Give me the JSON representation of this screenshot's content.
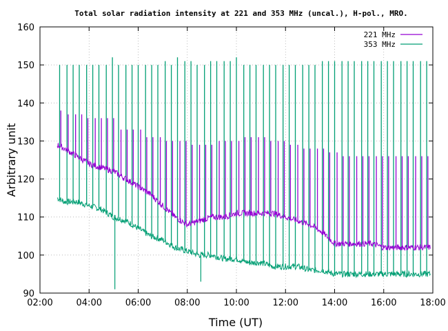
{
  "chart_data": {
    "type": "line",
    "title": "Total solar radiation intensity at 221 and 353 MHz (uncal.), H-pol., MRO.",
    "xlabel": "Time (UT)",
    "ylabel": "Arbitrary unit",
    "xlim_hours": [
      2,
      18
    ],
    "ylim": [
      90,
      160
    ],
    "x_ticks": [
      {
        "hour": 2,
        "label": "02:00"
      },
      {
        "hour": 4,
        "label": "04:00"
      },
      {
        "hour": 6,
        "label": "06:00"
      },
      {
        "hour": 8,
        "label": "08:00"
      },
      {
        "hour": 10,
        "label": "10:00"
      },
      {
        "hour": 12,
        "label": "12:00"
      },
      {
        "hour": 14,
        "label": "14:00"
      },
      {
        "hour": 16,
        "label": "16:00"
      },
      {
        "hour": 18,
        "label": "18:00"
      }
    ],
    "y_ticks": [
      90,
      100,
      110,
      120,
      130,
      140,
      150,
      160
    ],
    "grid": true,
    "legend": "top-right",
    "series": [
      {
        "name": "221 MHz",
        "color": "#9400d3",
        "x": [
          2.7,
          3.0,
          3.5,
          4.0,
          4.5,
          5.0,
          5.5,
          6.0,
          6.5,
          7.0,
          7.5,
          8.0,
          8.5,
          9.0,
          9.5,
          10.0,
          10.5,
          11.0,
          11.5,
          12.0,
          12.5,
          13.0,
          13.5,
          14.0,
          14.5,
          15.0,
          15.5,
          16.0,
          16.5,
          17.0,
          17.5,
          17.9
        ],
        "values": [
          129,
          128,
          126,
          124,
          123,
          122,
          120,
          118,
          116,
          113,
          110,
          108,
          109,
          110,
          110,
          111,
          111,
          111,
          111,
          110,
          109,
          108,
          106,
          103,
          103,
          103,
          103,
          102,
          102,
          102,
          102,
          102
        ],
        "spike_hours": [
          2.85,
          3.15,
          3.45,
          3.7,
          3.95,
          4.25,
          4.5,
          4.75,
          5.0,
          5.3,
          5.55,
          5.8,
          6.1,
          6.35,
          6.6,
          6.9,
          7.15,
          7.4,
          7.7,
          7.95,
          8.2,
          8.5,
          8.75,
          9.0,
          9.3,
          9.55,
          9.8,
          10.1,
          10.35,
          10.6,
          10.9,
          11.15,
          11.4,
          11.7,
          11.95,
          12.2,
          12.5,
          12.75,
          13.0,
          13.3,
          13.55,
          13.8,
          14.1,
          14.35,
          14.6,
          14.9,
          15.15,
          15.4,
          15.7,
          15.95,
          16.2,
          16.5,
          16.75,
          17.0,
          17.3,
          17.55,
          17.8
        ],
        "spike_peaks": [
          138,
          137,
          137,
          137,
          136,
          136,
          136,
          136,
          136,
          133,
          133,
          133,
          133,
          131,
          131,
          131,
          130,
          130,
          130,
          130,
          129,
          129,
          129,
          129,
          130,
          130,
          130,
          130,
          131,
          131,
          131,
          131,
          130,
          130,
          130,
          129,
          129,
          128,
          128,
          128,
          128,
          127,
          127,
          126,
          126,
          126,
          126,
          126,
          126,
          126,
          126,
          126,
          126,
          126,
          126,
          126,
          126
        ]
      },
      {
        "name": "353 MHz",
        "color": "#009e73",
        "x": [
          2.7,
          3.0,
          3.5,
          4.0,
          4.5,
          5.0,
          5.5,
          6.0,
          6.5,
          7.0,
          7.5,
          8.0,
          8.5,
          9.0,
          9.5,
          10.0,
          10.5,
          11.0,
          11.5,
          12.0,
          12.5,
          13.0,
          13.5,
          14.0,
          14.5,
          15.0,
          15.5,
          16.0,
          16.5,
          17.0,
          17.5,
          17.9
        ],
        "values": [
          115,
          114,
          114,
          113,
          112,
          110,
          109,
          107,
          105,
          104,
          102,
          101,
          100,
          100,
          99,
          99,
          98,
          98,
          97,
          97,
          97,
          96,
          96,
          95,
          95,
          95,
          95,
          95,
          95,
          95,
          95,
          95
        ],
        "spike_hours": [
          2.8,
          3.1,
          3.35,
          3.6,
          3.9,
          4.15,
          4.4,
          4.7,
          4.95,
          5.2,
          5.5,
          5.75,
          6.0,
          6.3,
          6.55,
          6.8,
          7.1,
          7.35,
          7.6,
          7.9,
          8.15,
          8.4,
          8.7,
          8.95,
          9.2,
          9.5,
          9.75,
          10.0,
          10.3,
          10.55,
          10.8,
          11.1,
          11.35,
          11.6,
          11.9,
          12.15,
          12.4,
          12.7,
          12.95,
          13.2,
          13.5,
          13.75,
          14.0,
          14.3,
          14.55,
          14.8,
          15.1,
          15.35,
          15.6,
          15.9,
          16.15,
          16.4,
          16.7,
          16.95,
          17.2,
          17.5,
          17.75
        ],
        "spike_peaks": [
          150,
          150,
          150,
          150,
          150,
          150,
          150,
          150,
          152,
          150,
          150,
          150,
          150,
          150,
          150,
          150,
          151,
          150,
          152,
          151,
          151,
          150,
          150,
          151,
          151,
          151,
          151,
          152,
          150,
          150,
          150,
          150,
          150,
          150,
          150,
          150,
          150,
          150,
          150,
          150,
          151,
          151,
          151,
          151,
          151,
          151,
          151,
          151,
          151,
          151,
          151,
          151,
          151,
          151,
          151,
          151,
          151
        ],
        "dips": [
          {
            "hour": 5.05,
            "value": 91
          },
          {
            "hour": 8.55,
            "value": 93
          }
        ]
      }
    ]
  }
}
